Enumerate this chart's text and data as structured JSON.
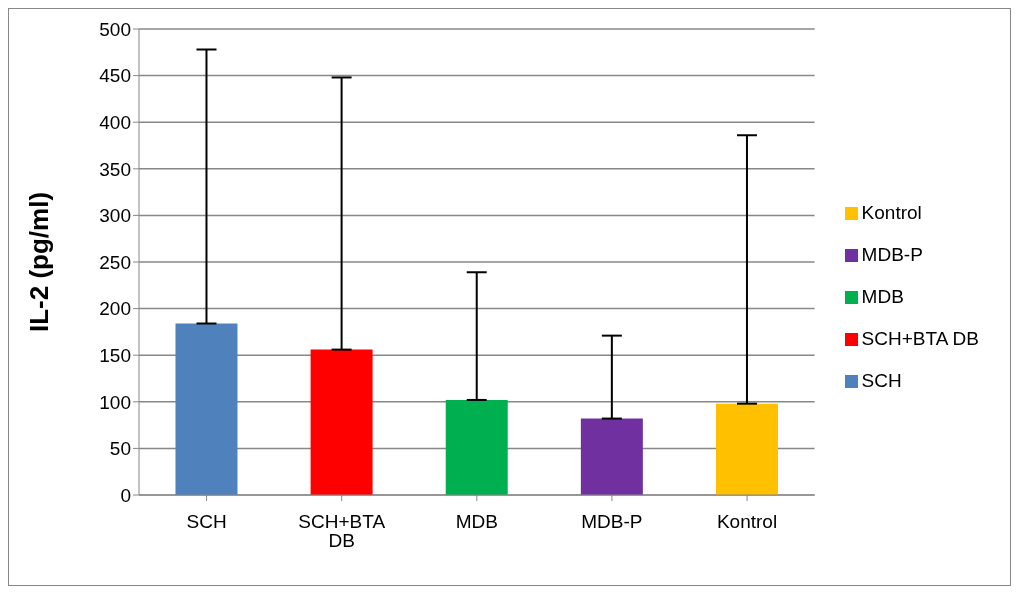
{
  "chart_data": {
    "type": "bar",
    "ylabel": "IL-2 (pg/ml)",
    "categories": [
      "SCH",
      "SCH+BTA DB",
      "MDB",
      "MDB-P",
      "Kontrol"
    ],
    "series": [
      {
        "name": "SCH",
        "color": "#4f81bd",
        "values": [
          184,
          null,
          null,
          null,
          null
        ],
        "errors": [
          [
            184,
            478
          ],
          null,
          null,
          null,
          null
        ]
      },
      {
        "name": "SCH+BTA DB",
        "color": "#ff0000",
        "values": [
          null,
          156,
          null,
          null,
          null
        ],
        "errors": [
          null,
          [
            156,
            448
          ],
          null,
          null,
          null
        ]
      },
      {
        "name": "MDB",
        "color": "#00b050",
        "values": [
          null,
          null,
          102,
          null,
          null
        ],
        "errors": [
          null,
          null,
          [
            102,
            239
          ],
          null,
          null
        ]
      },
      {
        "name": "MDB-P",
        "color": "#7030a0",
        "values": [
          null,
          null,
          null,
          82,
          null
        ],
        "errors": [
          null,
          null,
          null,
          [
            82,
            171
          ],
          null
        ]
      },
      {
        "name": "Kontrol",
        "color": "#ffc000",
        "values": [
          null,
          null,
          null,
          null,
          98
        ],
        "errors": [
          null,
          null,
          null,
          null,
          [
            98,
            386
          ]
        ]
      }
    ],
    "ylim": [
      0,
      500
    ],
    "yticks": [
      0,
      50,
      100,
      150,
      200,
      250,
      300,
      350,
      400,
      450,
      500
    ],
    "grid": "y",
    "legend": "right"
  }
}
